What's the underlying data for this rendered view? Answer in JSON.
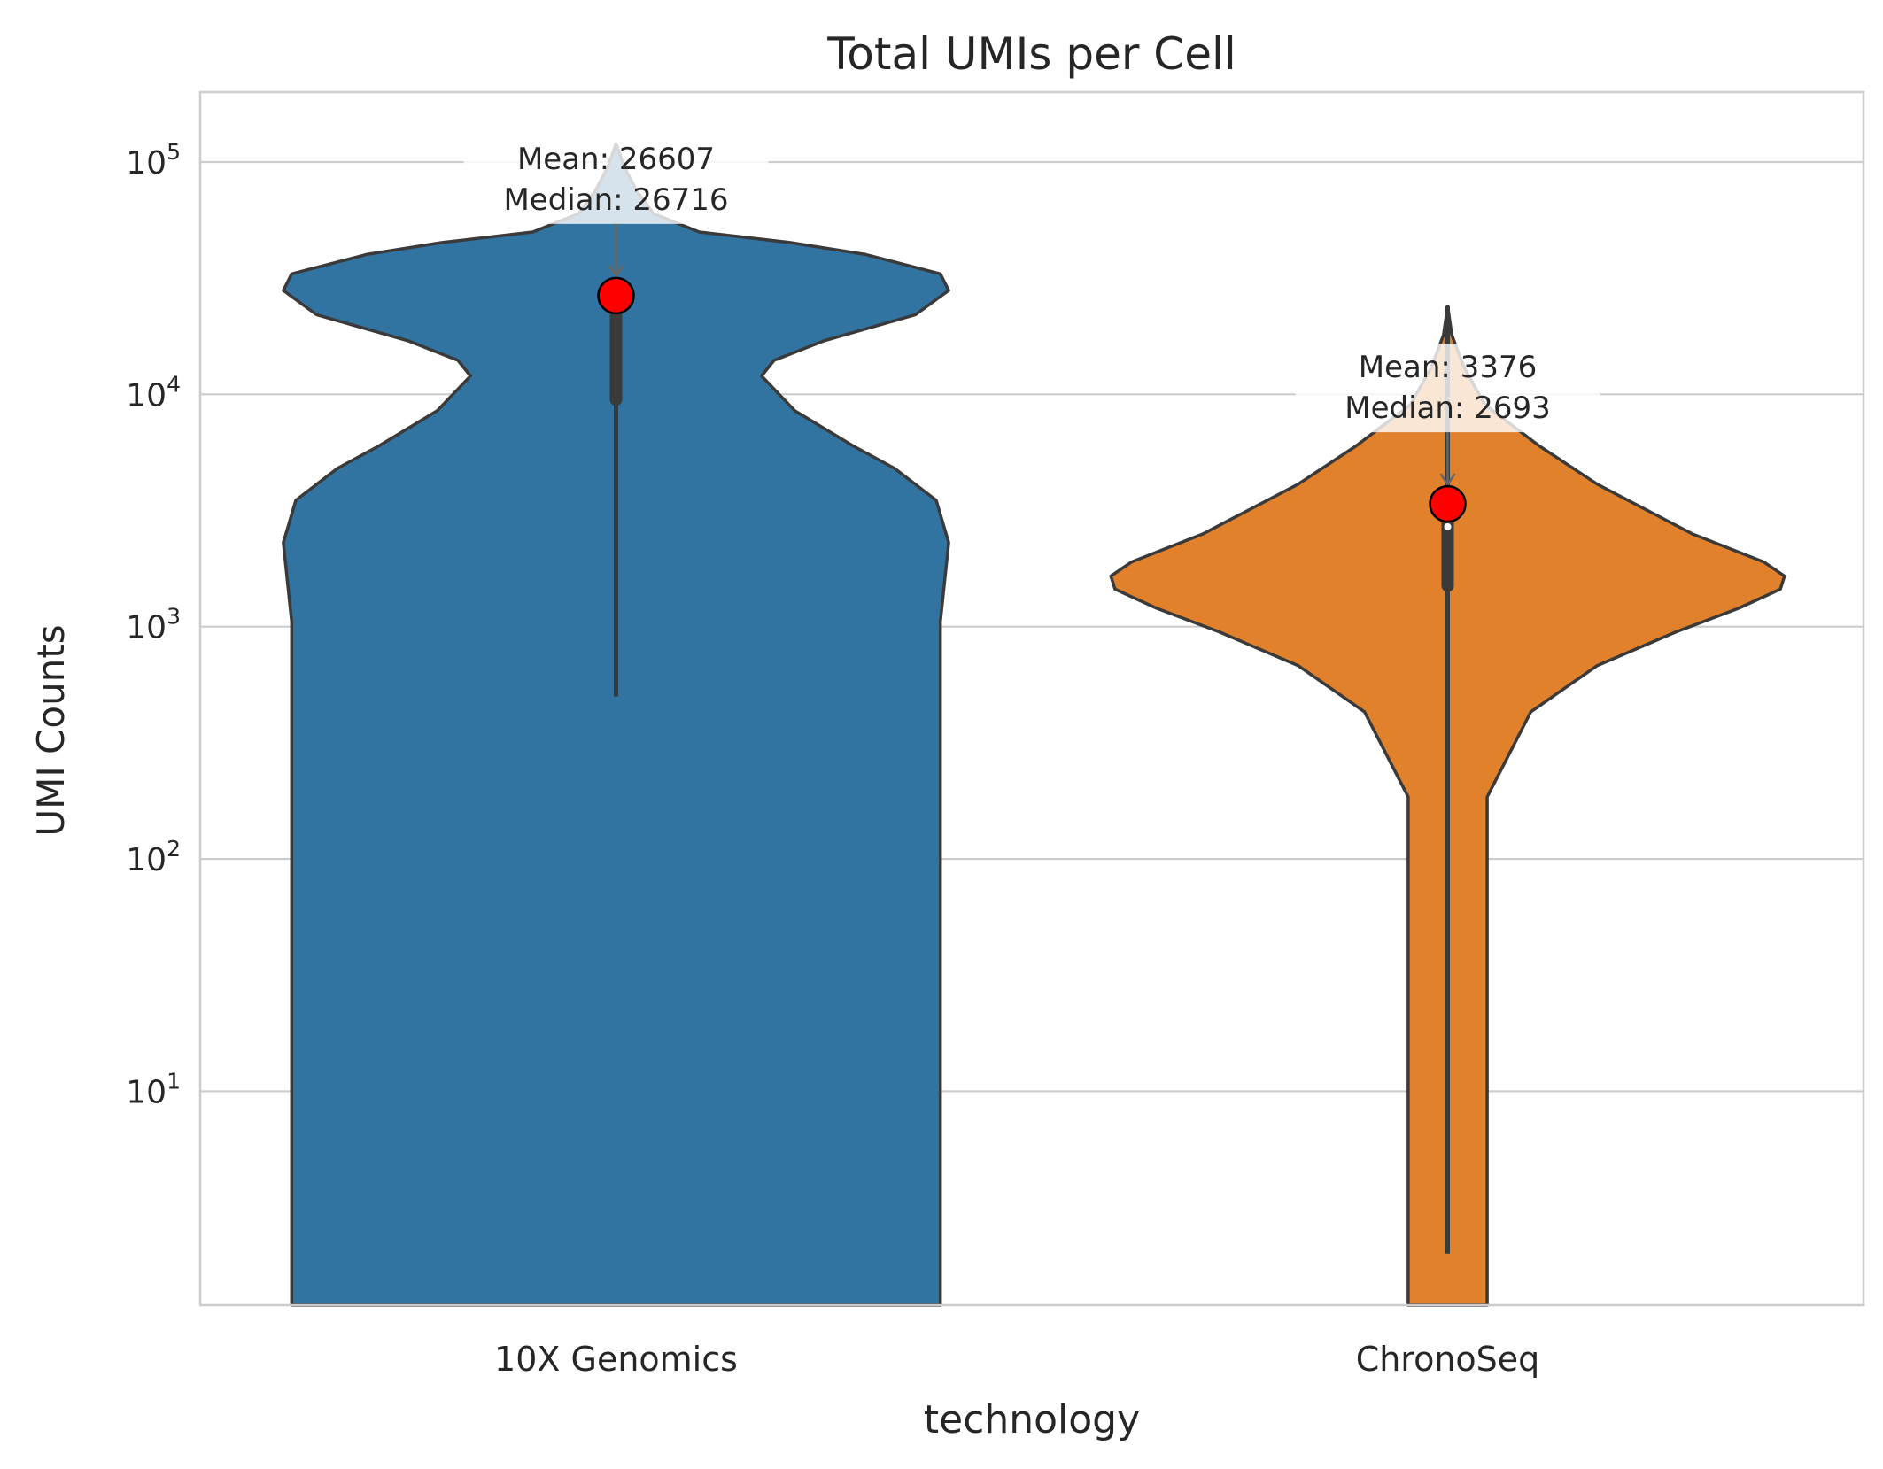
{
  "chart_data": {
    "type": "violin",
    "title": "Total UMIs per Cell",
    "xlabel": "technology",
    "ylabel": "UMI Counts",
    "yscale": "log",
    "ylim": [
      1.2,
      200000
    ],
    "grid": "y",
    "y_ticks": [
      {
        "value": 10,
        "base": "10",
        "exp": "1"
      },
      {
        "value": 100,
        "base": "10",
        "exp": "2"
      },
      {
        "value": 1000,
        "base": "10",
        "exp": "3"
      },
      {
        "value": 10000,
        "base": "10",
        "exp": "4"
      },
      {
        "value": 100000,
        "base": "10",
        "exp": "5"
      }
    ],
    "categories": [
      "10X Genomics",
      "ChronoSeq"
    ],
    "series": [
      {
        "category": "10X Genomics",
        "color": "#3274a1",
        "mean": 26607,
        "median": 26716,
        "annotation": [
          "Mean: 26607",
          "Median: 26716"
        ],
        "whisker": [
          500,
          26716
        ],
        "box": [
          9500,
          26716
        ],
        "profile": [
          [
            1.2,
            0.78
          ],
          [
            1050,
            0.78
          ],
          [
            2300,
            0.8
          ],
          [
            3500,
            0.77
          ],
          [
            4800,
            0.67
          ],
          [
            6000,
            0.57
          ],
          [
            8500,
            0.43
          ],
          [
            12000,
            0.35
          ],
          [
            14000,
            0.38
          ],
          [
            17000,
            0.5
          ],
          [
            22000,
            0.72
          ],
          [
            28000,
            0.8
          ],
          [
            33000,
            0.78
          ],
          [
            40000,
            0.6
          ],
          [
            45000,
            0.42
          ],
          [
            50000,
            0.2
          ],
          [
            60000,
            0.09
          ],
          [
            75000,
            0.05
          ],
          [
            95000,
            0.02
          ],
          [
            120000,
            0.0
          ]
        ]
      },
      {
        "category": "ChronoSeq",
        "color": "#e1812c",
        "mean": 3376,
        "median": 2693,
        "annotation": [
          "Mean: 3376",
          "Median: 2693"
        ],
        "whisker": [
          2,
          24000
        ],
        "box": [
          1500,
          2800
        ],
        "profile": [
          [
            1.2,
            0.095
          ],
          [
            185,
            0.095
          ],
          [
            430,
            0.2
          ],
          [
            680,
            0.36
          ],
          [
            950,
            0.55
          ],
          [
            1200,
            0.7
          ],
          [
            1450,
            0.8
          ],
          [
            1650,
            0.81
          ],
          [
            1900,
            0.76
          ],
          [
            2500,
            0.59
          ],
          [
            4100,
            0.36
          ],
          [
            6000,
            0.22
          ],
          [
            9000,
            0.09
          ],
          [
            13000,
            0.04
          ],
          [
            18000,
            0.01
          ],
          [
            24000,
            0.0
          ]
        ]
      }
    ]
  }
}
